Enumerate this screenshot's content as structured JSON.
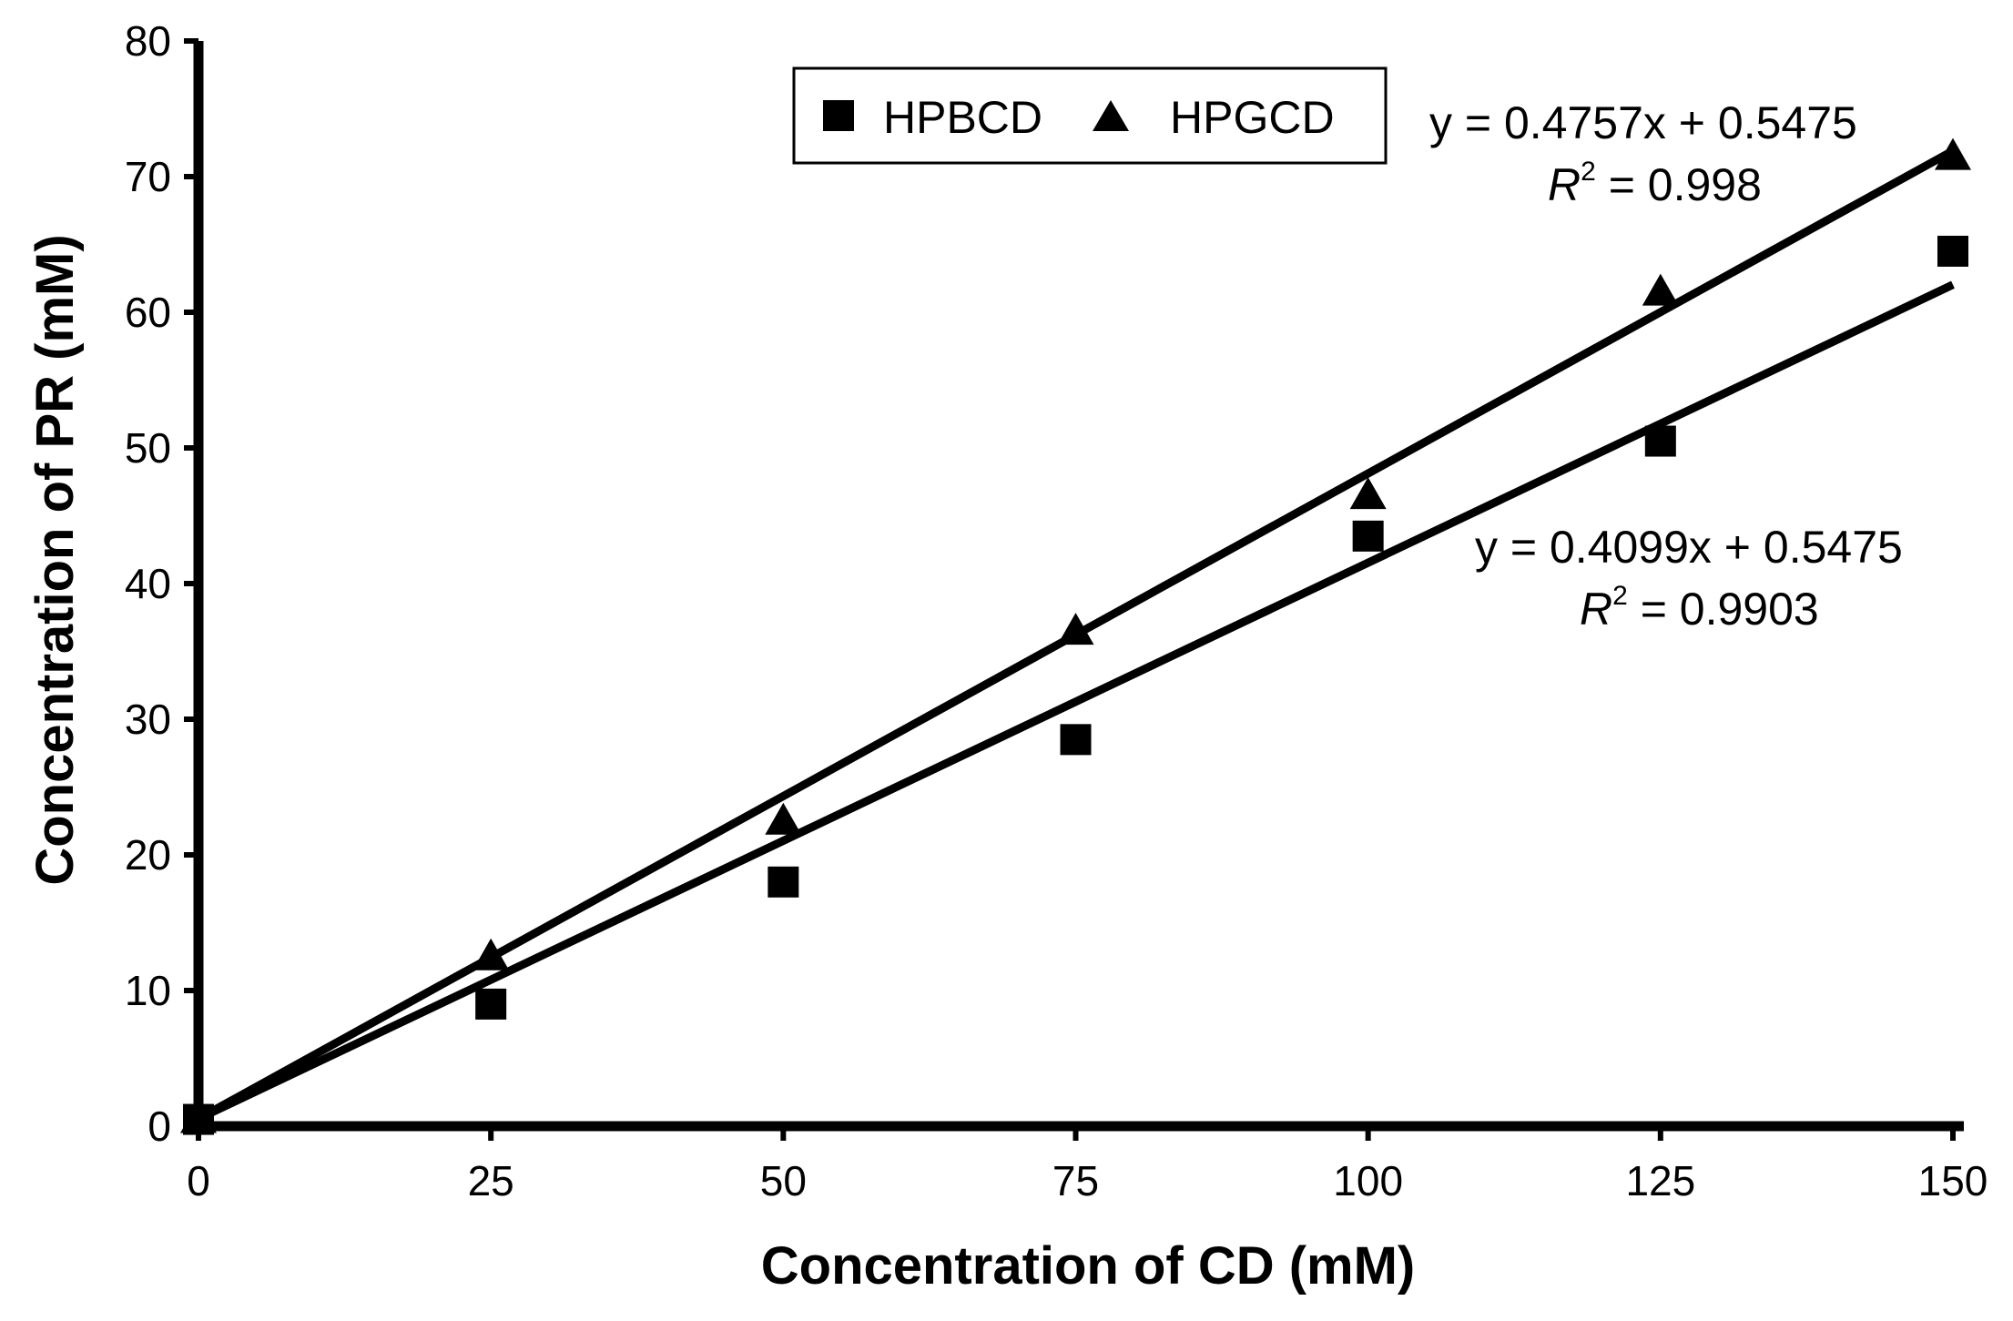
{
  "chart_data": {
    "type": "scatter",
    "title": "",
    "xlabel": "Concentration of CD (mM)",
    "ylabel": "Concentration of PR (mM)",
    "xlim": [
      0,
      150
    ],
    "ylim": [
      0,
      80
    ],
    "xticks": [
      0,
      25,
      50,
      75,
      100,
      125,
      150
    ],
    "yticks": [
      0,
      10,
      20,
      30,
      40,
      50,
      60,
      70,
      80
    ],
    "grid": false,
    "legend_position": "top-center",
    "series": [
      {
        "name": "HPBCD",
        "marker": "square",
        "x": [
          0,
          25,
          50,
          75,
          100,
          125,
          150
        ],
        "y": [
          0.5,
          9,
          18,
          28.5,
          43.5,
          50.5,
          64.5
        ],
        "trendline": {
          "slope": 0.4099,
          "intercept": 0.5475
        },
        "equation": "y = 0.4099x + 0.5475",
        "r2_label": "R",
        "r2_value": " = 0.9903"
      },
      {
        "name": "HPGCD",
        "marker": "triangle",
        "x": [
          0,
          25,
          50,
          75,
          100,
          125,
          150
        ],
        "y": [
          0.5,
          12.5,
          22.5,
          36.5,
          46.5,
          61.5,
          71.5
        ],
        "trendline": {
          "slope": 0.4757,
          "intercept": 0.5475
        },
        "equation": "y = 0.4757x + 0.5475",
        "r2_label": "R",
        "r2_value": " = 0.998"
      }
    ],
    "r2_superscript": "2"
  },
  "colors": {
    "ink": "#000000",
    "background": "#ffffff"
  }
}
